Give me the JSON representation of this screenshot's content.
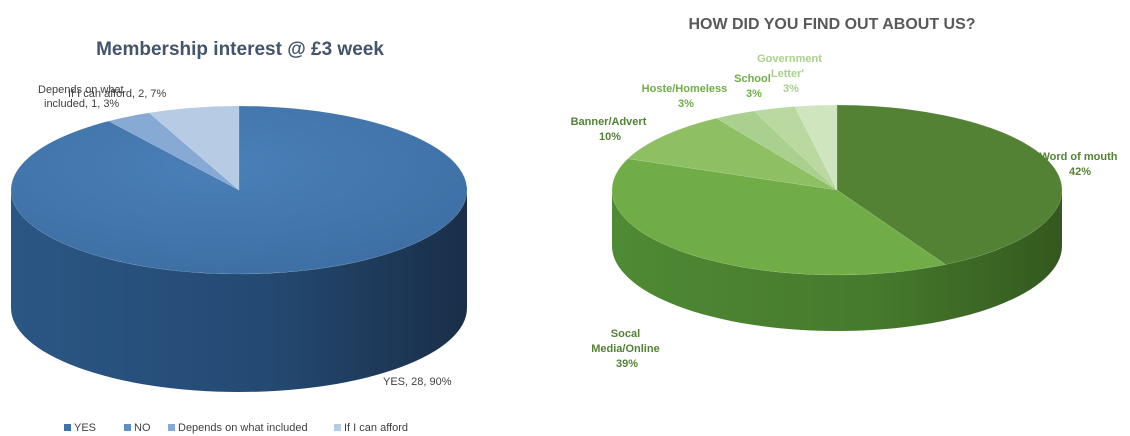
{
  "chart_data": [
    {
      "type": "pie",
      "title": "Membership interest @ £3 week",
      "categories": [
        "YES",
        "NO",
        "Depends on what included",
        "If I can afford"
      ],
      "values": [
        28,
        0,
        1,
        2
      ],
      "percent": [
        90,
        0,
        3,
        7
      ],
      "data_labels": [
        {
          "lines": [
            "YES, 28, 90%"
          ]
        },
        {
          "lines": [
            "Depends on what",
            "included, 1, 3%"
          ]
        },
        {
          "lines": [
            "If I can afford, 2, 7%"
          ]
        }
      ],
      "legend": {
        "position": "bottom",
        "entries": [
          "YES",
          "NO",
          "Depends on what included",
          "If I can afford"
        ]
      },
      "colors": [
        "#3f73a7",
        "#5b8fc6",
        "#86aad3",
        "#b7cbe5"
      ],
      "style": "3d"
    },
    {
      "type": "pie",
      "title": "HOW DID YOU FIND OUT ABOUT US?",
      "categories": [
        "Word of mouth",
        "Socal Media/Online",
        "Banner/Advert",
        "Hoste/Homeless",
        "School",
        "Government Letter'"
      ],
      "values": [
        42,
        39,
        10,
        3,
        3,
        3
      ],
      "data_labels": [
        {
          "lines": [
            "Word of mouth",
            "42%"
          ]
        },
        {
          "lines": [
            "Socal",
            "Media/Online",
            "39%"
          ]
        },
        {
          "lines": [
            "Banner/Advert",
            "10%"
          ]
        },
        {
          "lines": [
            "Hoste/Homeless",
            "3%"
          ]
        },
        {
          "lines": [
            "School",
            "3%"
          ]
        },
        {
          "lines": [
            "Government",
            "Letter'",
            "3%"
          ]
        }
      ],
      "colors": [
        "#548235",
        "#70ad47",
        "#8fbf63",
        "#a9d08e",
        "#b9d9a0",
        "#cfe5bd"
      ],
      "label_colors": [
        "#548235",
        "#548235",
        "#548235",
        "#70ad47",
        "#70ad47",
        "#a9d08e"
      ],
      "style": "3d"
    }
  ]
}
